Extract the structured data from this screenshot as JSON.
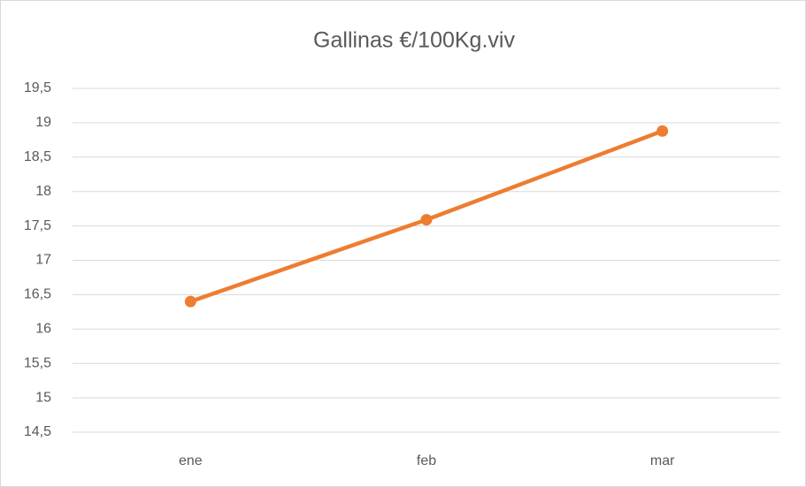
{
  "chart_data": {
    "type": "line",
    "title": "Gallinas €/100Kg.viv",
    "categories": [
      "ene",
      "feb",
      "mar"
    ],
    "series": [
      {
        "name": "Gallinas",
        "color": "#ed7d31",
        "values": [
          16.4,
          17.59,
          18.88
        ]
      }
    ],
    "ylim": [
      14.5,
      19.5
    ],
    "yticks": [
      {
        "value": 14.5,
        "label": "14,5"
      },
      15,
      {
        "value": 15.5,
        "label": "15,5"
      },
      16,
      {
        "value": 16.5,
        "label": "16,5"
      },
      17,
      {
        "value": 17.5,
        "label": "17,5"
      },
      18,
      {
        "value": 18.5,
        "label": "18,5"
      },
      19,
      {
        "value": 19.5,
        "label": "19,5"
      }
    ],
    "grid": true
  }
}
